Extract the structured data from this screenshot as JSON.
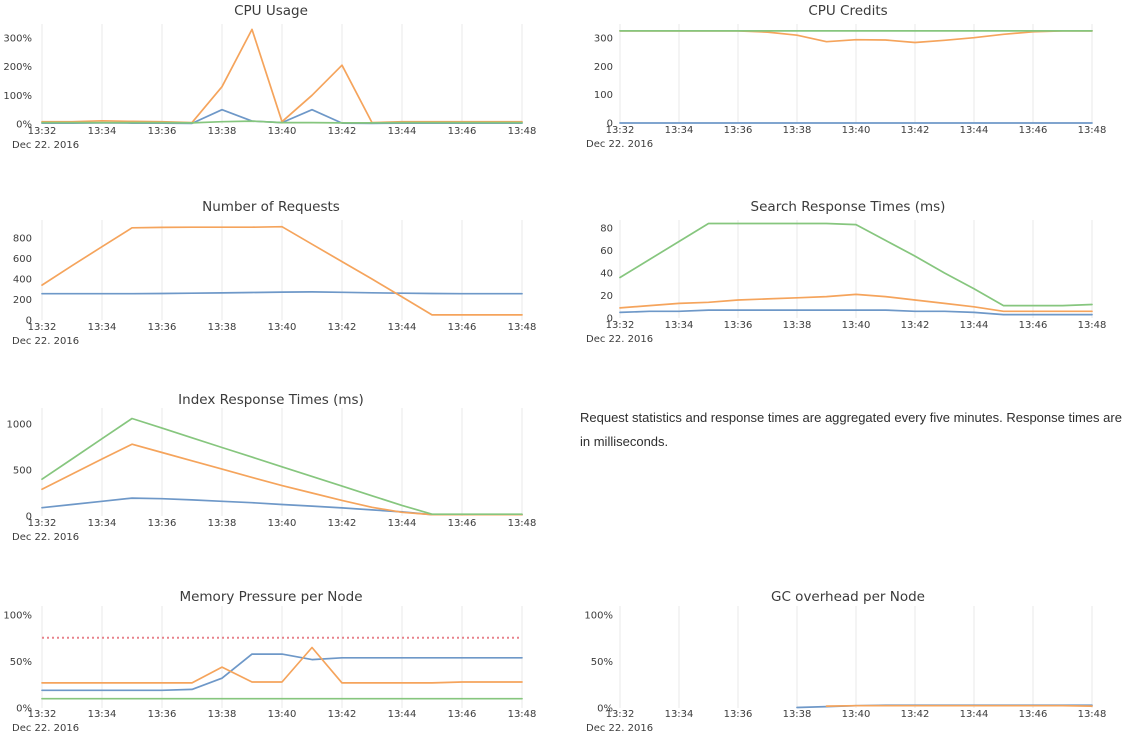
{
  "page": {
    "note_text": "Request statistics and response times are aggregated every five minutes. Response times are in milliseconds."
  },
  "colors": {
    "series_blue": "#6e98c8",
    "series_orange": "#f5a45c",
    "series_green": "#86c67e",
    "threshold_red": "#e8828b",
    "gridline": "#e8e8e8",
    "axis_text": "#3c3c3c",
    "title_text": "#3b3b3b"
  },
  "x_axis": {
    "tick_labels": [
      "13:32",
      "13:34",
      "13:36",
      "13:38",
      "13:40",
      "13:42",
      "13:44",
      "13:46",
      "13:48"
    ],
    "date_label": "Dec 22. 2016",
    "points_per_tick": 2,
    "point_interval_minutes": 1
  },
  "chart_data": [
    {
      "id": "cpu-usage",
      "type": "line",
      "title": "CPU Usage",
      "unit": "%",
      "ylim": [
        0,
        345
      ],
      "yticks": {
        "values": [
          0,
          100,
          200,
          300
        ],
        "suffix": "%"
      },
      "series": [
        {
          "name": "blue",
          "color": "blue",
          "values": [
            3,
            3,
            4,
            3,
            3,
            2,
            50,
            10,
            5,
            50,
            3,
            2,
            3,
            3,
            3,
            3,
            3
          ]
        },
        {
          "name": "orange",
          "color": "orange",
          "values": [
            8,
            8,
            11,
            9,
            8,
            5,
            130,
            330,
            8,
            100,
            205,
            5,
            8,
            8,
            8,
            8,
            8
          ]
        },
        {
          "name": "green",
          "color": "green",
          "values": [
            5,
            5,
            5,
            5,
            5,
            4,
            8,
            10,
            5,
            5,
            4,
            4,
            5,
            5,
            5,
            5,
            5
          ]
        }
      ]
    },
    {
      "id": "cpu-credits",
      "type": "line",
      "title": "CPU Credits",
      "unit": "",
      "ylim": [
        0,
        350
      ],
      "yticks": {
        "values": [
          0,
          100,
          200,
          300
        ],
        "suffix": ""
      },
      "series": [
        {
          "name": "blue",
          "color": "blue",
          "values": [
            0,
            0,
            0,
            0,
            0,
            0,
            0,
            0,
            0,
            0,
            0,
            0,
            0,
            0,
            0,
            0,
            0
          ]
        },
        {
          "name": "orange",
          "color": "orange",
          "values": [
            325,
            325,
            325,
            325,
            325,
            321,
            310,
            287,
            294,
            293,
            284,
            292,
            301,
            313,
            322,
            325,
            325
          ]
        },
        {
          "name": "green",
          "color": "green",
          "values": [
            325,
            325,
            325,
            325,
            325,
            325,
            325,
            325,
            325,
            325,
            325,
            325,
            325,
            325,
            325,
            325,
            325
          ]
        }
      ]
    },
    {
      "id": "requests",
      "type": "line",
      "title": "Number of Requests",
      "unit": "",
      "ylim": [
        0,
        950
      ],
      "yticks": {
        "values": [
          0,
          200,
          400,
          600,
          800
        ],
        "suffix": ""
      },
      "series": [
        {
          "name": "blue",
          "color": "blue",
          "values": [
            257,
            257,
            257,
            257,
            259,
            261,
            264,
            268,
            272,
            274,
            270,
            265,
            261,
            259,
            257,
            257,
            257
          ]
        },
        {
          "name": "orange",
          "color": "orange",
          "values": [
            340,
            530,
            715,
            900,
            903,
            905,
            905,
            905,
            910,
            740,
            570,
            400,
            225,
            50,
            50,
            50,
            50
          ]
        }
      ]
    },
    {
      "id": "search",
      "type": "line",
      "title": "Search Response Times (ms)",
      "unit": "ms",
      "ylim": [
        0,
        92
      ],
      "yticks": {
        "values": [
          0,
          20,
          40,
          60,
          80
        ],
        "suffix": ""
      },
      "series": [
        {
          "name": "blue",
          "color": "blue",
          "values": [
            5,
            6,
            6,
            7,
            7,
            7,
            7,
            7,
            7,
            7,
            6,
            6,
            5,
            3,
            3,
            3,
            3
          ]
        },
        {
          "name": "orange",
          "color": "orange",
          "values": [
            9,
            11,
            13,
            14,
            16,
            17,
            18,
            19,
            21,
            19,
            16,
            13,
            10,
            6,
            6,
            6,
            6
          ]
        },
        {
          "name": "green",
          "color": "green",
          "values": [
            36,
            52,
            68,
            84,
            84,
            84,
            84,
            84,
            83,
            69,
            55,
            40,
            26,
            11,
            11,
            11,
            12
          ]
        }
      ]
    },
    {
      "id": "index",
      "type": "line",
      "title": "Index Response Times (ms)",
      "unit": "ms",
      "ylim": [
        0,
        1150
      ],
      "yticks": {
        "values": [
          0,
          500,
          1000
        ],
        "suffix": ""
      },
      "series": [
        {
          "name": "blue",
          "color": "blue",
          "values": [
            90,
            125,
            160,
            195,
            188,
            175,
            160,
            145,
            125,
            108,
            88,
            66,
            45,
            15,
            14,
            14,
            14
          ]
        },
        {
          "name": "orange",
          "color": "orange",
          "values": [
            290,
            455,
            620,
            780,
            690,
            600,
            510,
            420,
            330,
            250,
            170,
            95,
            40,
            15,
            15,
            15,
            15
          ]
        },
        {
          "name": "green",
          "color": "green",
          "values": [
            400,
            620,
            840,
            1060,
            955,
            850,
            745,
            640,
            535,
            430,
            325,
            220,
            115,
            20,
            20,
            20,
            20
          ]
        }
      ]
    },
    {
      "id": "memory",
      "type": "line",
      "title": "Memory Pressure per Node",
      "unit": "%",
      "ylim": [
        0,
        108
      ],
      "yticks": {
        "values": [
          0,
          50,
          100
        ],
        "suffix": "%"
      },
      "threshold": {
        "value": 75.5,
        "color": "threshold_red",
        "style": "dotted"
      },
      "series": [
        {
          "name": "blue",
          "color": "blue",
          "values": [
            19,
            19,
            19,
            19,
            19,
            20,
            32,
            58,
            58,
            52,
            54,
            54,
            54,
            54,
            54,
            54,
            54
          ]
        },
        {
          "name": "orange",
          "color": "orange",
          "values": [
            27,
            27,
            27,
            27,
            27,
            27,
            44,
            28,
            28,
            65,
            27,
            27,
            27,
            27,
            28,
            28,
            28
          ]
        },
        {
          "name": "green",
          "color": "green",
          "values": [
            10,
            10,
            10,
            10,
            10,
            10,
            10,
            10,
            10,
            10,
            10,
            10,
            10,
            10,
            10,
            10,
            10
          ]
        }
      ]
    },
    {
      "id": "gc",
      "type": "line",
      "title": "GC overhead per Node",
      "unit": "%",
      "ylim": [
        0,
        108
      ],
      "yticks": {
        "values": [
          0,
          50,
          100
        ],
        "suffix": "%"
      },
      "series": [
        {
          "name": "blue",
          "color": "blue",
          "values": [
            null,
            null,
            null,
            null,
            null,
            null,
            0.5,
            1.5,
            2.5,
            3,
            3,
            3,
            3,
            3,
            3,
            3,
            3
          ]
        },
        {
          "name": "orange",
          "color": "orange",
          "values": [
            null,
            null,
            null,
            null,
            null,
            null,
            null,
            2,
            2.5,
            2.5,
            2.5,
            2.5,
            2.5,
            2.5,
            2.5,
            2.5,
            2
          ]
        }
      ]
    }
  ]
}
